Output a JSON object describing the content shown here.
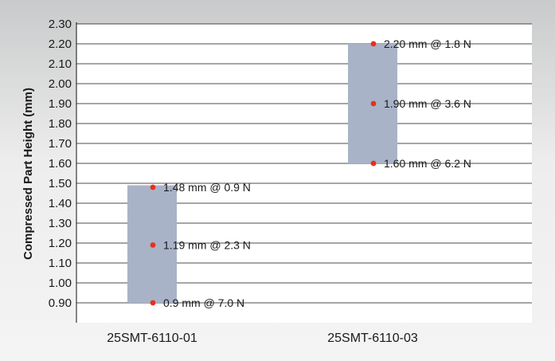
{
  "chart_data": {
    "type": "range-bar",
    "ylabel": "Compressed Part Height (mm)",
    "xlabel": "",
    "ylim": [
      0.8,
      2.3
    ],
    "yticks": [
      "0.90",
      "1.00",
      "1.10",
      "1.20",
      "1.30",
      "1.40",
      "1.50",
      "1.60",
      "1.70",
      "1.80",
      "1.90",
      "2.00",
      "2.10",
      "2.20",
      "2.30"
    ],
    "grid": true,
    "categories": [
      "25SMT-6110-01",
      "25SMT-6110-03"
    ],
    "ranges": [
      {
        "category": "25SMT-6110-01",
        "low": 0.9,
        "high": 1.49
      },
      {
        "category": "25SMT-6110-03",
        "low": 1.6,
        "high": 2.2
      }
    ],
    "points": [
      {
        "category": "25SMT-6110-01",
        "y": 1.48,
        "label": "1.48 mm @ 0.9 N"
      },
      {
        "category": "25SMT-6110-01",
        "y": 1.19,
        "label": "1.19 mm @ 2.3 N"
      },
      {
        "category": "25SMT-6110-01",
        "y": 0.9,
        "label": "0.9 mm @ 7.0 N"
      },
      {
        "category": "25SMT-6110-03",
        "y": 2.2,
        "label": "2.20 mm @ 1.8 N"
      },
      {
        "category": "25SMT-6110-03",
        "y": 1.9,
        "label": "1.90 mm @ 3.6 N"
      },
      {
        "category": "25SMT-6110-03",
        "y": 1.6,
        "label": "1.60 mm @ 6.2 N"
      }
    ],
    "colors": {
      "bar": "#a8b3c8",
      "point": "#e8301c",
      "plot_bg": "#ffffff",
      "grid": "#111111"
    }
  }
}
